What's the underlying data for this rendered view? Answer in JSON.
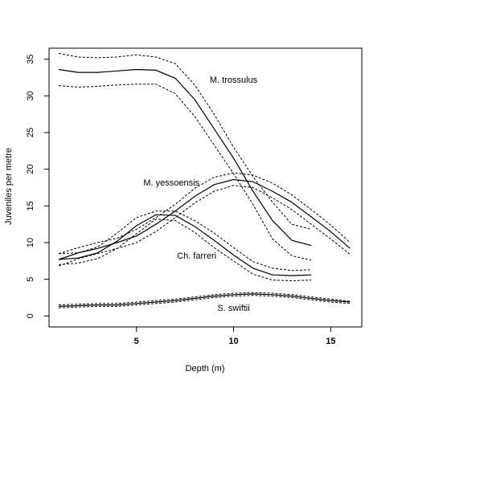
{
  "chart_data": {
    "type": "line",
    "title": "",
    "xlabel": "Depth (m)",
    "ylabel": "Juveniles per metre",
    "xlim": [
      0.5,
      16.6
    ],
    "ylim": [
      -1.5,
      36.5
    ],
    "xticks": [
      5,
      10,
      15
    ],
    "yticks": [
      0,
      5,
      10,
      15,
      20,
      25,
      30,
      35
    ],
    "grid": false,
    "legend": "none",
    "line_color": "#000000",
    "series": [
      {
        "name": "M. trossulus",
        "x": [
          1,
          2,
          3,
          4,
          5,
          6,
          7,
          8,
          9,
          10,
          11,
          12,
          13,
          14
        ],
        "values": [
          33.6,
          33.2,
          33.2,
          33.4,
          33.6,
          33.5,
          32.4,
          29.5,
          25.5,
          21.5,
          17.0,
          13.0,
          10.3,
          9.6
        ],
        "upper": [
          35.8,
          35.3,
          35.2,
          35.3,
          35.6,
          35.3,
          34.4,
          31.5,
          27.5,
          23.0,
          19.0,
          15.5,
          12.5,
          11.8
        ],
        "lower": [
          31.4,
          31.2,
          31.3,
          31.5,
          31.6,
          31.6,
          30.3,
          27.2,
          23.3,
          19.4,
          15.2,
          10.5,
          8.2,
          7.6
        ]
      },
      {
        "name": "M. yessoensis",
        "x": [
          1,
          2,
          3,
          4,
          5,
          6,
          7,
          8,
          9,
          10,
          11,
          12,
          13,
          14,
          15,
          16
        ],
        "values": [
          7.7,
          8.6,
          9.2,
          10.0,
          10.9,
          12.5,
          14.3,
          16.3,
          17.9,
          18.6,
          18.3,
          17.0,
          15.5,
          13.5,
          11.5,
          9.2
        ],
        "upper": [
          8.5,
          9.3,
          10.0,
          10.6,
          11.8,
          13.4,
          15.2,
          17.4,
          18.9,
          19.5,
          19.2,
          18.1,
          16.5,
          14.5,
          12.4,
          10.0
        ],
        "lower": [
          6.8,
          7.8,
          8.5,
          9.2,
          10.0,
          11.5,
          13.4,
          15.4,
          17.0,
          17.8,
          17.5,
          16.1,
          14.5,
          12.5,
          10.5,
          8.4
        ]
      },
      {
        "name": "Ch. farreri",
        "x": [
          1,
          2,
          3,
          4,
          5,
          6,
          7,
          8,
          9,
          10,
          11,
          12,
          13,
          14
        ],
        "values": [
          7.7,
          7.9,
          8.6,
          10.2,
          12.3,
          13.8,
          13.7,
          12.2,
          10.3,
          8.3,
          6.5,
          5.6,
          5.5,
          5.6
        ],
        "upper": [
          8.5,
          8.6,
          9.4,
          11.3,
          13.4,
          14.3,
          14.3,
          13.0,
          11.3,
          9.3,
          7.4,
          6.5,
          6.2,
          6.3
        ],
        "lower": [
          7.0,
          7.2,
          7.8,
          9.2,
          11.2,
          13.2,
          13.0,
          11.4,
          9.3,
          7.5,
          5.7,
          4.9,
          4.8,
          4.9
        ]
      },
      {
        "name": "S. swiftii",
        "x": [
          1,
          2,
          3,
          4,
          5,
          6,
          7,
          8,
          9,
          10,
          11,
          12,
          13,
          14,
          15,
          16
        ],
        "values": [
          1.3,
          1.4,
          1.5,
          1.5,
          1.7,
          1.9,
          2.1,
          2.4,
          2.7,
          2.9,
          3.0,
          2.9,
          2.7,
          2.4,
          2.1,
          1.9
        ],
        "upper": [
          1.5,
          1.6,
          1.7,
          1.7,
          1.9,
          2.1,
          2.3,
          2.6,
          2.9,
          3.1,
          3.2,
          3.1,
          2.9,
          2.6,
          2.3,
          2.0
        ],
        "lower": [
          1.1,
          1.2,
          1.3,
          1.3,
          1.5,
          1.7,
          1.9,
          2.2,
          2.5,
          2.7,
          2.8,
          2.7,
          2.5,
          2.2,
          1.9,
          1.7
        ]
      }
    ],
    "annotations": [
      {
        "text": "M. trossulus",
        "x": 10.0,
        "y": 31.8
      },
      {
        "text": "M. yessoensis",
        "x": 6.8,
        "y": 17.8
      },
      {
        "text": "Ch. farreri",
        "x": 8.1,
        "y": 7.8
      },
      {
        "text": "S. swiftii",
        "x": 10.0,
        "y": 0.7
      }
    ]
  }
}
